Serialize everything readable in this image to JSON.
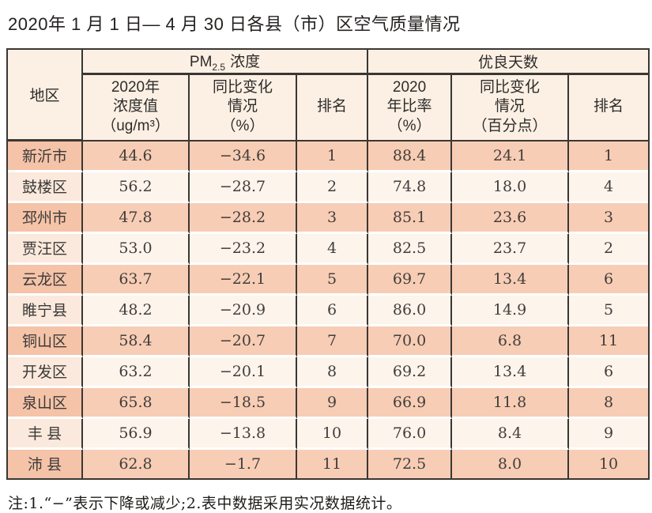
{
  "title": "2020年 1 月 1 日— 4 月 30 日各县（市）区空气质量情况",
  "note": "注:1.“−”表示下降或减少;2.表中数据采用实况数据统计。",
  "colors": {
    "row_odd": "#f8cdb5",
    "row_odd_region": "#f5c3a8",
    "row_even": "#fdf4ec",
    "row_even_region": "#fae9dc",
    "header_bg": "#fcf0e4",
    "border": "#3a3733"
  },
  "table": {
    "header": {
      "region": "地区",
      "pm_prefix": "PM",
      "pm_sub": "2.5",
      "pm_suffix": "浓度",
      "good_group": "优良天数",
      "pm_value": "2020年\n浓度值\n（ug/m³）",
      "pm_change": "同比变化\n情况\n（%）",
      "pm_rank": "排名",
      "good_ratio": "2020\n年比率\n（%）",
      "good_change": "同比变化\n情况\n（百分点）",
      "good_rank": "排名"
    },
    "rows": [
      {
        "region": "新沂市",
        "pm_value": "44.6",
        "pm_change": "−34.6",
        "pm_rank": "1",
        "good_ratio": "88.4",
        "good_change": "24.1",
        "good_rank": "1"
      },
      {
        "region": "鼓楼区",
        "pm_value": "56.2",
        "pm_change": "−28.7",
        "pm_rank": "2",
        "good_ratio": "74.8",
        "good_change": "18.0",
        "good_rank": "4"
      },
      {
        "region": "邳州市",
        "pm_value": "47.8",
        "pm_change": "−28.2",
        "pm_rank": "3",
        "good_ratio": "85.1",
        "good_change": "23.6",
        "good_rank": "3"
      },
      {
        "region": "贾汪区",
        "pm_value": "53.0",
        "pm_change": "−23.2",
        "pm_rank": "4",
        "good_ratio": "82.5",
        "good_change": "23.7",
        "good_rank": "2"
      },
      {
        "region": "云龙区",
        "pm_value": "63.7",
        "pm_change": "−22.1",
        "pm_rank": "5",
        "good_ratio": "69.7",
        "good_change": "13.4",
        "good_rank": "6"
      },
      {
        "region": "睢宁县",
        "pm_value": "48.2",
        "pm_change": "−20.9",
        "pm_rank": "6",
        "good_ratio": "86.0",
        "good_change": "14.9",
        "good_rank": "5"
      },
      {
        "region": "铜山区",
        "pm_value": "58.4",
        "pm_change": "−20.7",
        "pm_rank": "7",
        "good_ratio": "70.0",
        "good_change": "6.8",
        "good_rank": "11"
      },
      {
        "region": "开发区",
        "pm_value": "63.2",
        "pm_change": "−20.1",
        "pm_rank": "8",
        "good_ratio": "69.2",
        "good_change": "13.4",
        "good_rank": "6"
      },
      {
        "region": "泉山区",
        "pm_value": "65.8",
        "pm_change": "−18.5",
        "pm_rank": "9",
        "good_ratio": "66.9",
        "good_change": "11.8",
        "good_rank": "8"
      },
      {
        "region": "丰 县",
        "pm_value": "56.9",
        "pm_change": "−13.8",
        "pm_rank": "10",
        "good_ratio": "76.0",
        "good_change": "8.4",
        "good_rank": "9"
      },
      {
        "region": "沛 县",
        "pm_value": "62.8",
        "pm_change": "−1.7",
        "pm_rank": "11",
        "good_ratio": "72.5",
        "good_change": "8.0",
        "good_rank": "10"
      }
    ]
  }
}
